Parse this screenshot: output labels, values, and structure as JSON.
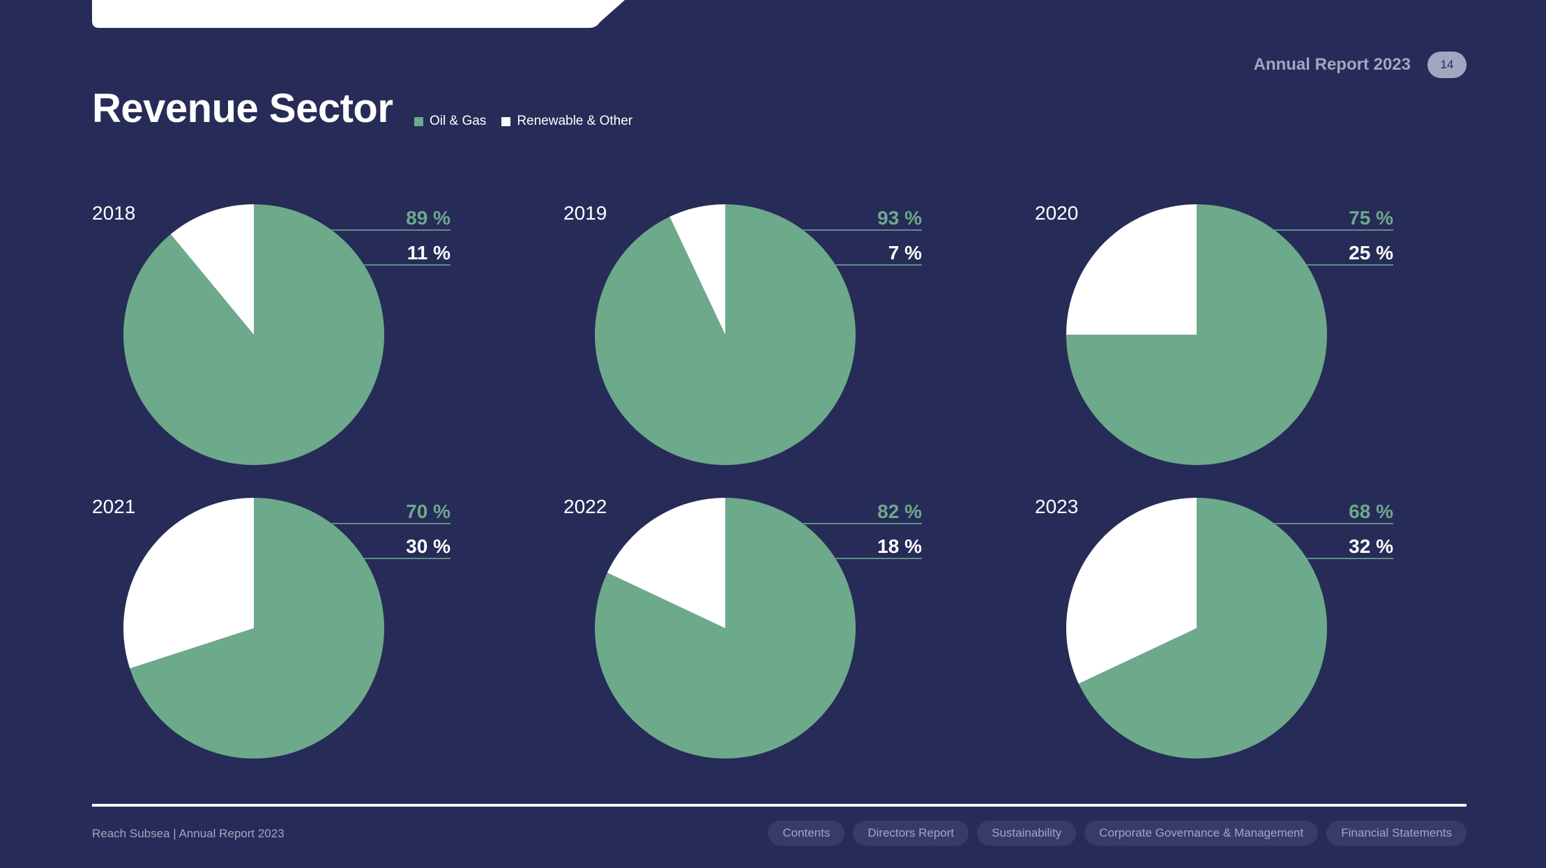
{
  "header": {
    "report_title": "Annual Report 2023",
    "page_number": "14"
  },
  "page": {
    "title": "Revenue Sector"
  },
  "legend": [
    {
      "label": "Oil & Gas",
      "color": "#6da98b"
    },
    {
      "label": "Renewable & Other",
      "color": "#ffffff"
    }
  ],
  "colors": {
    "background": "#272b57",
    "oil_gas": "#6da98b",
    "renewable": "#ffffff"
  },
  "chart_data": [
    {
      "type": "pie",
      "title": "2018",
      "categories": [
        "Oil & Gas",
        "Renewable & Other"
      ],
      "values": [
        89,
        11
      ],
      "labels": [
        "89 %",
        "11 %"
      ]
    },
    {
      "type": "pie",
      "title": "2019",
      "categories": [
        "Oil & Gas",
        "Renewable & Other"
      ],
      "values": [
        93,
        7
      ],
      "labels": [
        "93 %",
        "7 %"
      ]
    },
    {
      "type": "pie",
      "title": "2020",
      "categories": [
        "Oil & Gas",
        "Renewable & Other"
      ],
      "values": [
        75,
        25
      ],
      "labels": [
        "75 %",
        "25 %"
      ]
    },
    {
      "type": "pie",
      "title": "2021",
      "categories": [
        "Oil & Gas",
        "Renewable & Other"
      ],
      "values": [
        70,
        30
      ],
      "labels": [
        "70 %",
        "30 %"
      ]
    },
    {
      "type": "pie",
      "title": "2022",
      "categories": [
        "Oil & Gas",
        "Renewable & Other"
      ],
      "values": [
        82,
        18
      ],
      "labels": [
        "82 %",
        "18 %"
      ]
    },
    {
      "type": "pie",
      "title": "2023",
      "categories": [
        "Oil & Gas",
        "Renewable & Other"
      ],
      "values": [
        68,
        32
      ],
      "labels": [
        "68 %",
        "32 %"
      ]
    }
  ],
  "footer": {
    "text": "Reach Subsea | Annual Report 2023",
    "nav": [
      "Contents",
      "Directors Report",
      "Sustainability",
      "Corporate Governance & Management",
      "Financial Statements"
    ]
  }
}
